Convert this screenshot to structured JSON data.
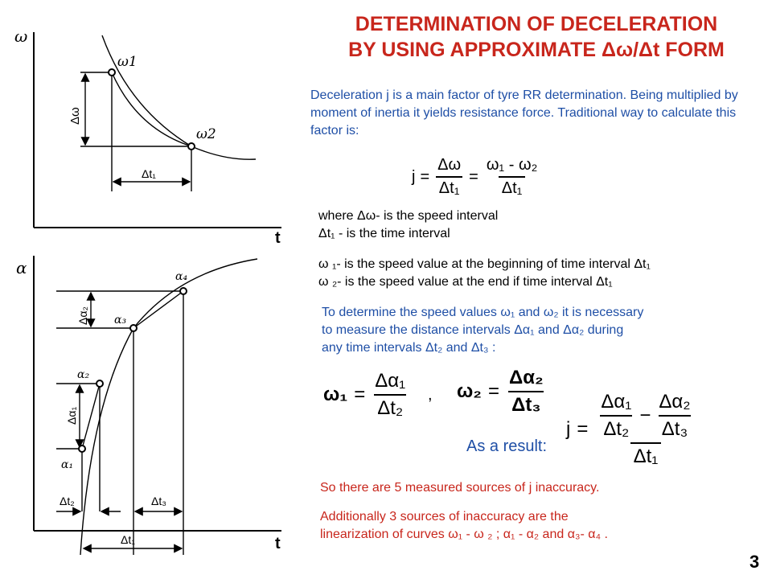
{
  "title": {
    "line1": "DETERMINATION OF DECELERATION",
    "line2": "BY USING APPROXIMATE Δω/Δt FORM"
  },
  "intro": {
    "part1": "Deceleration j is a main factor of tyre RR determination. Being multiplied by moment of inertia it yields resistance force.",
    "part2": "Traditional way to calculate this factor is:"
  },
  "formula1": {
    "j": "j",
    "eq": "=",
    "num1": "Δω",
    "den1": "Δt₁",
    "num2": "ω₁ - ω₂",
    "den2": "Δt₁"
  },
  "definitions": {
    "d1": "where Δω- is the speed interval",
    "d2": "Δt₁ - is the time interval",
    "d3": "ω ₁- is the speed value at the beginning of time interval Δt₁",
    "d4": "ω ₂- is the speed value at the end if time interval Δt₁"
  },
  "speed_text": {
    "l1": "To determine the speed values ω₁ and ω₂ it is necessary",
    "l2": "to measure the distance intervals Δα₁ and Δα₂ during",
    "l3": "any time intervals Δt₂ and Δt₃ :"
  },
  "formula2": {
    "w1": "ω₁",
    "w1_num": "Δα₁",
    "w1_den": "Δt₂",
    "comma": ",",
    "w2": "ω₂",
    "w2_num": "Δα₂",
    "w2_den": "Δt₃",
    "eq": "="
  },
  "result": {
    "label": "As a result:",
    "j": "j",
    "eq": "=",
    "a_num": "Δα₁",
    "a_den": "Δt₂",
    "minus": "−",
    "b_num": "Δα₂",
    "b_den": "Δt₃",
    "den": "Δt₁"
  },
  "conclusion1": "So there are 5 measured sources of j inaccuracy.",
  "conclusion2": {
    "l1": "Additionally 3 sources of inaccuracy are the",
    "l2": "linearization of curves ω₁ - ω ₂ ; α₁ - α₂ and α₃- α₄ ."
  },
  "page_number": "3",
  "diagram_top": {
    "y_axis": "ω",
    "x_axis": "t",
    "p1": "ω1",
    "p2": "ω2",
    "dw": "Δω",
    "dt": "Δt₁"
  },
  "diagram_bottom": {
    "y_axis": "α",
    "x_axis": "t",
    "a1": "α₁",
    "a2": "α₂",
    "a3": "α₃",
    "a4": "α₄",
    "da1": "Δα₁",
    "da2": "Δα₂",
    "dt1": "Δt₁",
    "dt2": "Δt₂",
    "dt3": "Δt₃"
  },
  "colors": {
    "title": "#c8261c",
    "blue_text": "#1f4fa6",
    "red_text": "#c8261c"
  }
}
